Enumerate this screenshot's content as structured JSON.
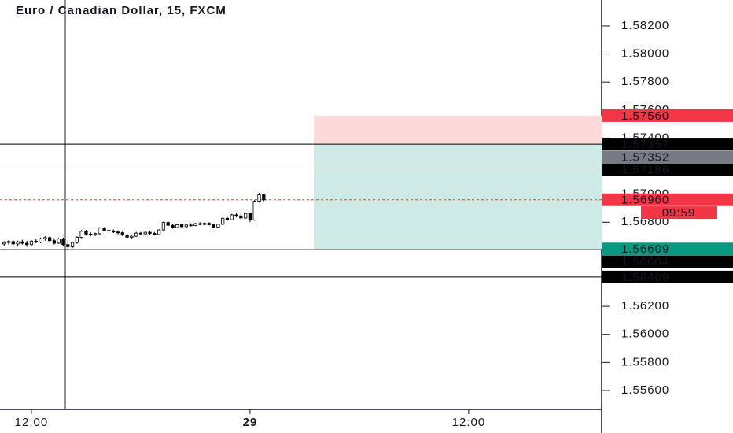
{
  "chart_data": {
    "type": "candlestick",
    "title": "Euro / Canadian Dollar, 15, FXCM",
    "x": [
      -1.5,
      -1.25,
      -1,
      -0.75,
      -0.5,
      -0.25,
      0,
      0.25,
      0.5,
      0.75,
      1,
      1.25,
      1.5,
      1.75,
      2,
      2.25,
      2.5,
      2.75,
      3,
      3.25,
      3.5,
      3.75,
      4,
      4.25,
      4.5,
      4.75,
      5,
      5.25,
      5.5,
      5.75,
      6,
      6.25,
      6.5,
      6.75,
      7,
      7.25,
      7.5,
      7.75,
      8,
      8.25,
      8.5,
      8.75,
      9,
      9.25,
      9.5,
      9.75,
      10,
      10.25,
      10.5,
      10.75,
      11,
      11.25,
      11.5,
      11.75,
      12,
      12.25,
      12.5,
      12.75
    ],
    "candles": [
      [
        1.56645,
        1.56665,
        1.5663,
        1.56655
      ],
      [
        1.56655,
        1.56672,
        1.5664,
        1.56662
      ],
      [
        1.56662,
        1.5667,
        1.56635,
        1.56645
      ],
      [
        1.56645,
        1.56668,
        1.5663,
        1.5666
      ],
      [
        1.5666,
        1.56675,
        1.5664,
        1.5665
      ],
      [
        1.5665,
        1.56668,
        1.56625,
        1.5664
      ],
      [
        1.5664,
        1.56672,
        1.5663,
        1.56665
      ],
      [
        1.56665,
        1.5668,
        1.5665,
        1.56658
      ],
      [
        1.56658,
        1.5669,
        1.5665,
        1.56682
      ],
      [
        1.56682,
        1.567,
        1.56668,
        1.5669
      ],
      [
        1.5669,
        1.56698,
        1.5666,
        1.56668
      ],
      [
        1.56668,
        1.56685,
        1.5664,
        1.5665
      ],
      [
        1.5665,
        1.56688,
        1.56645,
        1.5668
      ],
      [
        1.5668,
        1.5669,
        1.5663,
        1.5664
      ],
      [
        1.5664,
        1.5667,
        1.566,
        1.56625
      ],
      [
        1.56625,
        1.5666,
        1.56615,
        1.56655
      ],
      [
        1.56655,
        1.567,
        1.56645,
        1.56692
      ],
      [
        1.56692,
        1.56745,
        1.56685,
        1.56735
      ],
      [
        1.56735,
        1.56745,
        1.56705,
        1.56715
      ],
      [
        1.56715,
        1.56728,
        1.567,
        1.56712
      ],
      [
        1.56712,
        1.56725,
        1.567,
        1.56718
      ],
      [
        1.56718,
        1.56765,
        1.5671,
        1.56758
      ],
      [
        1.56758,
        1.56765,
        1.56735,
        1.56742
      ],
      [
        1.56742,
        1.56752,
        1.56725,
        1.56738
      ],
      [
        1.56738,
        1.56748,
        1.56722,
        1.5673
      ],
      [
        1.5673,
        1.56742,
        1.56712,
        1.56725
      ],
      [
        1.56725,
        1.56735,
        1.567,
        1.56708
      ],
      [
        1.56708,
        1.5672,
        1.56688,
        1.56692
      ],
      [
        1.56692,
        1.56705,
        1.5668,
        1.567
      ],
      [
        1.567,
        1.5673,
        1.56695,
        1.56722
      ],
      [
        1.56722,
        1.5673,
        1.5671,
        1.56716
      ],
      [
        1.56716,
        1.56735,
        1.5671,
        1.56728
      ],
      [
        1.56728,
        1.56738,
        1.56712,
        1.5672
      ],
      [
        1.5672,
        1.5673,
        1.56705,
        1.56712
      ],
      [
        1.56712,
        1.5675,
        1.56708,
        1.56745
      ],
      [
        1.56745,
        1.56805,
        1.5674,
        1.56798
      ],
      [
        1.56798,
        1.56808,
        1.5677,
        1.56778
      ],
      [
        1.56778,
        1.56788,
        1.56755,
        1.56762
      ],
      [
        1.56762,
        1.5679,
        1.56758,
        1.56782
      ],
      [
        1.56782,
        1.5679,
        1.5676,
        1.56768
      ],
      [
        1.56768,
        1.56785,
        1.56762,
        1.5678
      ],
      [
        1.5678,
        1.56792,
        1.5677,
        1.56776
      ],
      [
        1.56776,
        1.56795,
        1.56772,
        1.5679
      ],
      [
        1.5679,
        1.568,
        1.56778,
        1.56784
      ],
      [
        1.56784,
        1.56798,
        1.56778,
        1.56792
      ],
      [
        1.56792,
        1.568,
        1.56778,
        1.56782
      ],
      [
        1.56782,
        1.5679,
        1.56758,
        1.56765
      ],
      [
        1.56765,
        1.5679,
        1.5676,
        1.56785
      ],
      [
        1.56785,
        1.56835,
        1.5678,
        1.56828
      ],
      [
        1.56828,
        1.56838,
        1.5681,
        1.56818
      ],
      [
        1.56818,
        1.5686,
        1.56815,
        1.56852
      ],
      [
        1.56852,
        1.56868,
        1.56835,
        1.56845
      ],
      [
        1.56845,
        1.56862,
        1.5682,
        1.5683
      ],
      [
        1.5683,
        1.5687,
        1.56825,
        1.56862
      ],
      [
        1.56862,
        1.56868,
        1.568,
        1.56815
      ],
      [
        1.56815,
        1.5696,
        1.5681,
        1.5695
      ],
      [
        1.5695,
        1.57008,
        1.5694,
        1.56995
      ],
      [
        1.56995,
        1.57,
        1.5695,
        1.5696
      ]
    ],
    "up_color": "#ffffff",
    "down_color": "#000000",
    "xlim": [
      -1.725,
      31.3
    ],
    "xticks": [
      {
        "value": 0,
        "label": "12:00"
      },
      {
        "value": 12,
        "label": "29"
      },
      {
        "value": 24,
        "label": "12:00"
      }
    ],
    "ylim": [
      1.55465,
      1.58385
    ],
    "yticks": [
      {
        "value": 1.582,
        "label": "1.58200"
      },
      {
        "value": 1.58,
        "label": "1.58000"
      },
      {
        "value": 1.578,
        "label": "1.57800"
      },
      {
        "value": 1.576,
        "label": "1.57600"
      },
      {
        "value": 1.574,
        "label": "1.57400"
      },
      {
        "value": 1.57,
        "label": "1.57000"
      },
      {
        "value": 1.568,
        "label": "1.56800"
      },
      {
        "value": 1.562,
        "label": "1.56200"
      },
      {
        "value": 1.56,
        "label": "1.56000"
      },
      {
        "value": 1.558,
        "label": "1.55800"
      },
      {
        "value": 1.556,
        "label": "1.55600"
      }
    ],
    "horizontal_lines": [
      {
        "value": 1.57357,
        "label": "1.57357",
        "color": "#000000"
      },
      {
        "value": 1.57186,
        "label": "1.57186",
        "color": "#000000"
      },
      {
        "value": 1.56604,
        "label": "1.56604",
        "color": "#000000"
      },
      {
        "value": 1.56409,
        "label": "1.56409",
        "color": "#000000"
      }
    ],
    "crosshair": {
      "value": 1.57352,
      "label": "1.57352",
      "color": "#787b86"
    },
    "last_price": {
      "value": 1.5696,
      "label": "1.56960",
      "color": "#f23645"
    },
    "countdown": "09:59",
    "position": {
      "start": 15.5,
      "entry": 1.57357,
      "stop": {
        "value": 1.5756,
        "label": "1.57560",
        "color": "#f23645",
        "fill": "#fdd9d9"
      },
      "target": {
        "value": 1.56609,
        "label": "1.56609",
        "color": "#089981",
        "fill": "#cdeae6"
      }
    }
  }
}
